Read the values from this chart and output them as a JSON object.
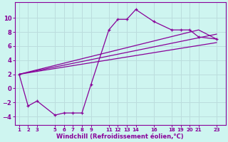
{
  "xlabel": "Windchill (Refroidissement éolien,°C)",
  "bg_color": "#cef5f0",
  "line_color": "#880099",
  "grid_color": "#bbdddd",
  "xticks": [
    1,
    2,
    3,
    5,
    6,
    7,
    8,
    9,
    11,
    12,
    13,
    14,
    16,
    18,
    19,
    20,
    21,
    23
  ],
  "yticks": [
    -4,
    -2,
    0,
    2,
    4,
    6,
    8,
    10
  ],
  "ylim": [
    -5.2,
    12.2
  ],
  "xlim": [
    0.5,
    24.0
  ],
  "series1_x": [
    1,
    2,
    3,
    5,
    6,
    7,
    8,
    9,
    11,
    12,
    13,
    14,
    16,
    18,
    19,
    20,
    21,
    23
  ],
  "series1_y": [
    2.0,
    -2.5,
    -1.8,
    -3.8,
    -3.5,
    -3.5,
    -3.5,
    0.5,
    8.3,
    9.8,
    9.8,
    11.2,
    9.5,
    8.3,
    8.3,
    8.3,
    7.3,
    7.0
  ],
  "series2_x": [
    1,
    21,
    23
  ],
  "series2_y": [
    2.0,
    8.3,
    7.0
  ],
  "series3_x": [
    1,
    23
  ],
  "series3_y": [
    2.0,
    6.5
  ],
  "series4_x": [
    1,
    23
  ],
  "series4_y": [
    2.0,
    7.7
  ],
  "marker": "+"
}
